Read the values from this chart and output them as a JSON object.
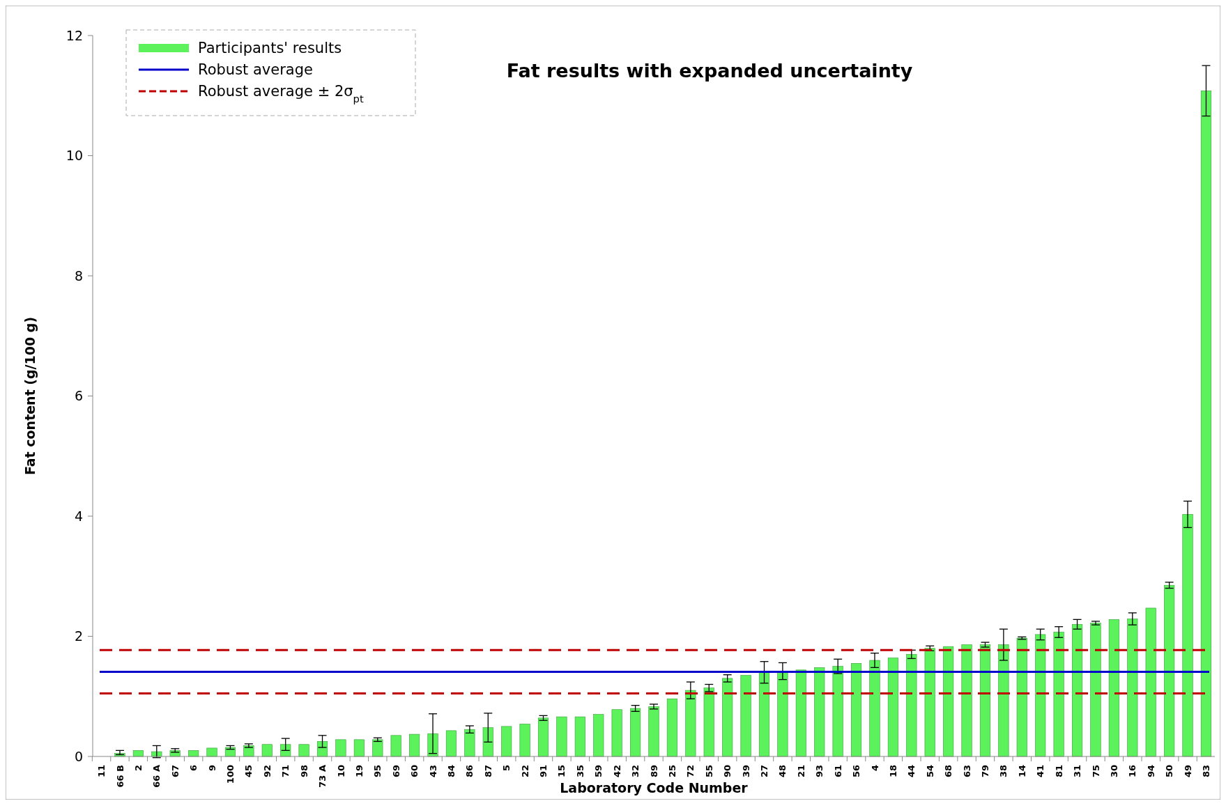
{
  "chart_data": {
    "type": "bar",
    "title": "Fat results with expanded uncertainty",
    "xlabel": "Laboratory Code Number",
    "ylabel": "Fat content (g/100 g)",
    "categories": [
      "11",
      "66 B",
      "2",
      "66 A",
      "67",
      "6",
      "9",
      "100",
      "45",
      "92",
      "71",
      "98",
      "73 A",
      "10",
      "19",
      "95",
      "69",
      "60",
      "43",
      "84",
      "86",
      "87",
      "5",
      "22",
      "91",
      "15",
      "35",
      "59",
      "42",
      "32",
      "89",
      "25",
      "72",
      "55",
      "90",
      "39",
      "27",
      "48",
      "21",
      "93",
      "61",
      "56",
      "4",
      "18",
      "44",
      "54",
      "68",
      "63",
      "79",
      "38",
      "14",
      "41",
      "81",
      "31",
      "75",
      "30",
      "16",
      "94",
      "50",
      "49",
      "83"
    ],
    "series": [
      {
        "name": "Participants' results",
        "color": "#5cf25c",
        "values": [
          null,
          0.05,
          0.1,
          0.08,
          0.1,
          0.1,
          0.14,
          0.15,
          0.18,
          0.2,
          0.2,
          0.2,
          0.25,
          0.28,
          0.28,
          0.28,
          0.35,
          0.37,
          0.38,
          0.43,
          0.45,
          0.48,
          0.5,
          0.54,
          0.64,
          0.66,
          0.66,
          0.7,
          0.78,
          0.8,
          0.83,
          0.96,
          1.1,
          1.14,
          1.3,
          1.35,
          1.4,
          1.42,
          1.44,
          1.48,
          1.5,
          1.55,
          1.6,
          1.64,
          1.7,
          1.8,
          1.83,
          1.86,
          1.86,
          1.86,
          1.97,
          2.03,
          2.07,
          2.2,
          2.22,
          2.28,
          2.29,
          2.47,
          2.85,
          4.03,
          11.08
        ],
        "errors": [
          null,
          [
            0.03,
            0.1
          ],
          null,
          0.1,
          0.03,
          null,
          null,
          0.03,
          0.03,
          null,
          0.1,
          null,
          0.1,
          null,
          null,
          0.03,
          null,
          null,
          0.33,
          null,
          0.06,
          0.24,
          null,
          null,
          0.04,
          null,
          null,
          null,
          null,
          0.05,
          0.04,
          null,
          0.14,
          0.06,
          0.06,
          null,
          0.18,
          0.14,
          null,
          null,
          0.12,
          null,
          0.12,
          null,
          0.07,
          0.04,
          null,
          null,
          0.04,
          0.26,
          0.02,
          0.09,
          0.09,
          0.08,
          0.03,
          null,
          0.1,
          null,
          0.05,
          0.22,
          0.42
        ]
      }
    ],
    "ylim": [
      0,
      12
    ],
    "yticks": [
      0,
      2,
      4,
      6,
      8,
      10,
      12
    ],
    "grid": false,
    "legend": "top left",
    "ref_lines": [
      {
        "axis": "y",
        "value": 1.41,
        "label": "Robust average",
        "color": "#0000cc",
        "line_style": "solid"
      },
      {
        "axis": "y",
        "value": 1.77,
        "label": "Robust average ± 2σ$_{pt}$",
        "color": "#c00000",
        "line_style": "dashed"
      },
      {
        "axis": "y",
        "value": 1.05,
        "color": "#c00000",
        "line_style": "dashed"
      }
    ]
  }
}
